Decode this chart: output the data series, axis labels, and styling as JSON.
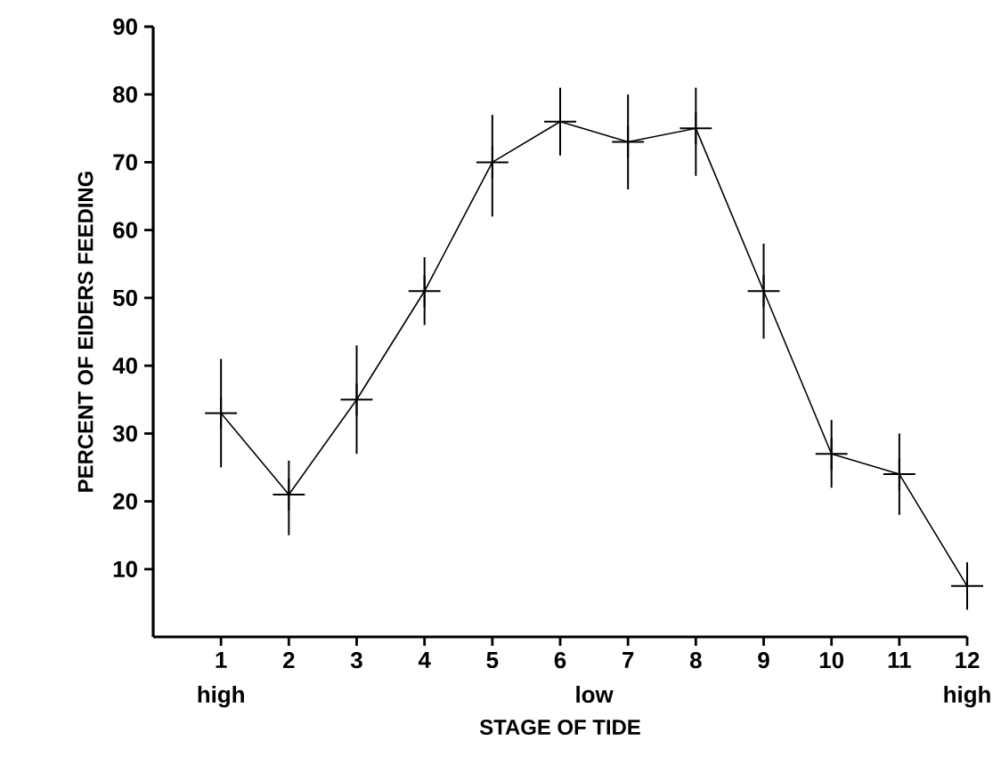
{
  "chart_data": {
    "type": "line",
    "xlabel": "STAGE OF TIDE",
    "ylabel": "PERCENT OF EIDERS FEEDING",
    "x": [
      1,
      2,
      3,
      4,
      5,
      6,
      7,
      8,
      9,
      10,
      11,
      12
    ],
    "values": [
      33,
      21,
      35,
      51,
      70,
      76,
      73,
      75,
      51,
      27,
      24,
      7.5
    ],
    "errors": [
      [
        25,
        41
      ],
      [
        15,
        26
      ],
      [
        27,
        43
      ],
      [
        46,
        56
      ],
      [
        62,
        77
      ],
      [
        71,
        81
      ],
      [
        66,
        80
      ],
      [
        68,
        81
      ],
      [
        44,
        58
      ],
      [
        22,
        32
      ],
      [
        18,
        30
      ],
      [
        4,
        11
      ]
    ],
    "color": "#000000",
    "marker": "cross",
    "line_style": "solid",
    "xlim": [
      0,
      12
    ],
    "ylim": [
      0,
      90
    ],
    "xticks": [
      1,
      2,
      3,
      4,
      5,
      6,
      7,
      8,
      9,
      10,
      11,
      12
    ],
    "yticks": [
      10,
      20,
      30,
      40,
      50,
      60,
      70,
      80,
      90
    ],
    "grid": false,
    "annotations": [
      "high",
      "low",
      "high"
    ]
  }
}
